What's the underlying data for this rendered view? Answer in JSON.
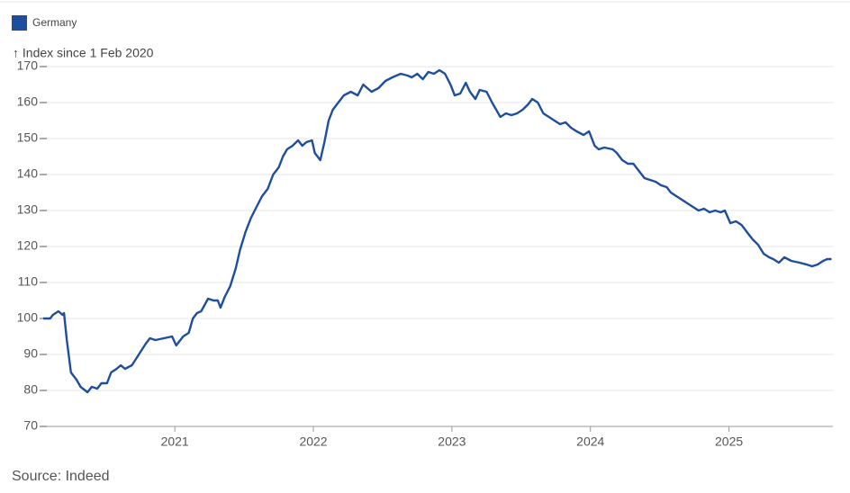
{
  "chart_data": {
    "type": "line",
    "y_label": "↑ Index since 1 Feb 2020",
    "source": "Source: Indeed",
    "legend_position": "top-left",
    "grid": true,
    "x": [
      2020.05,
      2020.1,
      2020.12,
      2020.16,
      2020.19,
      2020.2,
      2020.22,
      2020.25,
      2020.29,
      2020.32,
      2020.37,
      2020.4,
      2020.44,
      2020.47,
      2020.51,
      2020.54,
      2020.58,
      2020.61,
      2020.64,
      2020.69,
      2020.74,
      2020.79,
      2020.82,
      2020.86,
      2020.92,
      2020.98,
      2021.01,
      2021.06,
      2021.1,
      2021.13,
      2021.16,
      2021.19,
      2021.24,
      2021.28,
      2021.31,
      2021.33,
      2021.36,
      2021.4,
      2021.44,
      2021.47,
      2021.51,
      2021.55,
      2021.59,
      2021.63,
      2021.67,
      2021.71,
      2021.75,
      2021.78,
      2021.81,
      2021.85,
      2021.89,
      2021.92,
      2021.95,
      2021.99,
      2022.01,
      2022.05,
      2022.08,
      2022.11,
      2022.14,
      2022.18,
      2022.22,
      2022.27,
      2022.32,
      2022.36,
      2022.42,
      2022.47,
      2022.52,
      2022.57,
      2022.63,
      2022.68,
      2022.71,
      2022.75,
      2022.79,
      2022.83,
      2022.87,
      2022.91,
      2022.95,
      2022.99,
      2023.02,
      2023.06,
      2023.1,
      2023.13,
      2023.17,
      2023.2,
      2023.25,
      2023.29,
      2023.32,
      2023.35,
      2023.39,
      2023.43,
      2023.47,
      2023.51,
      2023.55,
      2023.58,
      2023.62,
      2023.66,
      2023.7,
      2023.74,
      2023.78,
      2023.82,
      2023.86,
      2023.9,
      2023.95,
      2023.99,
      2024.03,
      2024.06,
      2024.1,
      2024.16,
      2024.19,
      2024.23,
      2024.27,
      2024.31,
      2024.35,
      2024.39,
      2024.43,
      2024.47,
      2024.51,
      2024.55,
      2024.58,
      2024.62,
      2024.66,
      2024.7,
      2024.74,
      2024.78,
      2024.82,
      2024.86,
      2024.9,
      2024.94,
      2024.97,
      2025.01,
      2025.05,
      2025.09,
      2025.13,
      2025.17,
      2025.21,
      2025.25,
      2025.29,
      2025.32,
      2025.36,
      2025.4,
      2025.45,
      2025.51,
      2025.56,
      2025.6,
      2025.64,
      2025.68,
      2025.71,
      2025.74
    ],
    "series": [
      {
        "name": "Germany",
        "color": "#1f4e9e",
        "values": [
          100,
          100,
          101,
          102,
          101,
          101.5,
          94,
          85,
          83,
          81,
          79.5,
          81,
          80.5,
          82,
          82,
          85,
          86,
          87,
          86,
          87,
          90,
          93,
          94.5,
          94,
          94.5,
          95,
          92.5,
          95,
          96,
          100,
          101.5,
          102,
          105.5,
          105,
          105,
          103,
          106,
          109,
          114,
          119,
          124,
          128,
          131,
          134,
          136,
          140,
          142,
          145,
          147,
          148,
          149.5,
          148,
          149,
          149.5,
          146,
          144,
          149,
          155,
          158,
          160,
          162,
          163,
          162,
          165,
          163,
          164,
          166,
          167,
          168,
          167.5,
          167,
          168,
          166.5,
          168.5,
          168,
          169,
          168,
          165,
          162,
          162.5,
          165.5,
          163,
          161,
          163.5,
          163,
          160,
          158,
          156,
          157,
          156.5,
          157,
          158,
          159.5,
          161,
          160,
          157,
          156,
          155,
          154,
          154.5,
          153,
          152,
          151,
          152,
          148,
          147,
          147.5,
          147,
          146,
          144,
          143,
          143,
          141,
          139,
          138.5,
          138,
          137,
          136.5,
          135,
          134,
          133,
          132,
          131,
          130,
          130.5,
          129.5,
          130,
          129.5,
          130,
          126.5,
          127,
          126,
          124,
          122,
          120.5,
          118,
          117,
          116.5,
          115.5,
          117,
          116,
          115.5,
          115,
          114.5,
          115,
          116,
          116.5,
          116.5
        ]
      }
    ],
    "xlim": [
      2020.05,
      2025.75
    ],
    "xticks": [
      2021,
      2022,
      2023,
      2024,
      2025
    ],
    "ylim": [
      70,
      170
    ],
    "yticks": [
      70,
      80,
      90,
      100,
      110,
      120,
      130,
      140,
      150,
      160,
      170
    ]
  }
}
